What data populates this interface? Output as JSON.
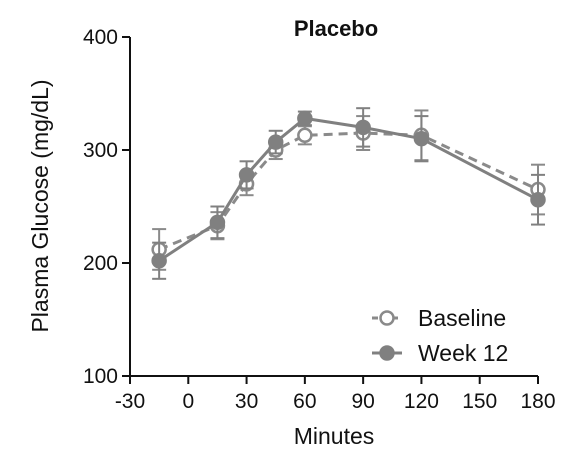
{
  "chart_data": {
    "type": "line",
    "title": "Placebo",
    "xlabel": "Minutes",
    "ylabel": "Plasma Glucose (mg/dL)",
    "x_ticks": [
      -30,
      0,
      30,
      60,
      90,
      120,
      150,
      180
    ],
    "y_ticks": [
      100,
      200,
      300,
      400
    ],
    "xlim": [
      -30,
      180
    ],
    "ylim": [
      100,
      400
    ],
    "grid": false,
    "legend_position": "bottom-right",
    "series": [
      {
        "name": "Baseline",
        "marker": "open-circle",
        "line_style": "dashed",
        "color": "#8a8a8a",
        "x": [
          -15,
          15,
          30,
          45,
          60,
          90,
          120,
          180
        ],
        "y": [
          212,
          233,
          270,
          300,
          313,
          315,
          313,
          265
        ],
        "error": [
          18,
          12,
          10,
          8,
          8,
          15,
          22,
          22
        ]
      },
      {
        "name": "Week 12",
        "marker": "filled-circle",
        "line_style": "solid",
        "color": "#808080",
        "x": [
          -15,
          15,
          30,
          45,
          60,
          90,
          120,
          180
        ],
        "y": [
          202,
          236,
          278,
          307,
          328,
          320,
          310,
          256
        ],
        "error": [
          16,
          14,
          12,
          10,
          6,
          17,
          20,
          22
        ]
      }
    ]
  }
}
